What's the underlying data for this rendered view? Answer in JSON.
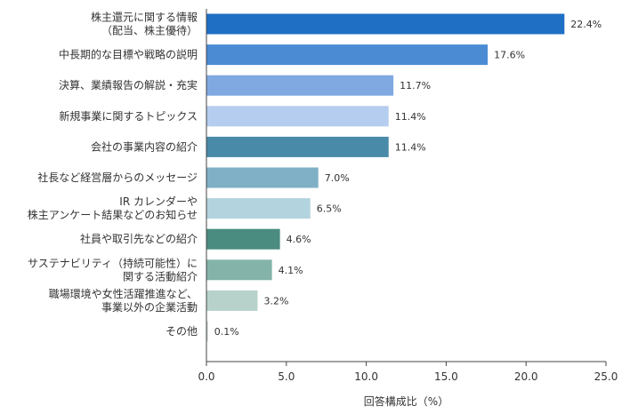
{
  "chart_data": {
    "type": "bar",
    "orientation": "horizontal",
    "categories": [
      [
        "株主還元に関する情報",
        "（配当、株主優待）"
      ],
      [
        "中長期的な目標や戦略の説明"
      ],
      [
        "決算、業績報告の解説・充実"
      ],
      [
        "新規事業に関するトピックス"
      ],
      [
        "会社の事業内容の紹介"
      ],
      [
        "社長など経営層からのメッセージ"
      ],
      [
        "IR カレンダーや",
        "株主アンケート結果などのお知らせ"
      ],
      [
        "社員や取引先などの紹介"
      ],
      [
        "サステナビリティ（持続可能性）に",
        "関する活動紹介"
      ],
      [
        "職場環境や女性活躍推進など、",
        "事業以外の企業活動"
      ],
      [
        "その他"
      ]
    ],
    "values": [
      22.4,
      17.6,
      11.7,
      11.4,
      11.4,
      7.0,
      6.5,
      4.6,
      4.1,
      3.2,
      0.1
    ],
    "value_labels": [
      "22.4%",
      "17.6%",
      "11.7%",
      "11.4%",
      "11.4%",
      "7.0%",
      "6.5%",
      "4.6%",
      "4.1%",
      "3.2%",
      "0.1%"
    ],
    "bar_colors": [
      "#1f6fc5",
      "#4a8bd4",
      "#7fa9e0",
      "#b5cdee",
      "#4a8aa9",
      "#7fb0c6",
      "#b3d3de",
      "#4a8c80",
      "#84b3aa",
      "#b6d2cb",
      "#cfd8d6"
    ],
    "xlim": [
      0,
      25
    ],
    "xticks": [
      "0.0",
      "5.0",
      "10.0",
      "15.0",
      "20.0",
      "25.0"
    ],
    "xlabel": "回答構成比（%）",
    "title": "",
    "grid": false
  }
}
